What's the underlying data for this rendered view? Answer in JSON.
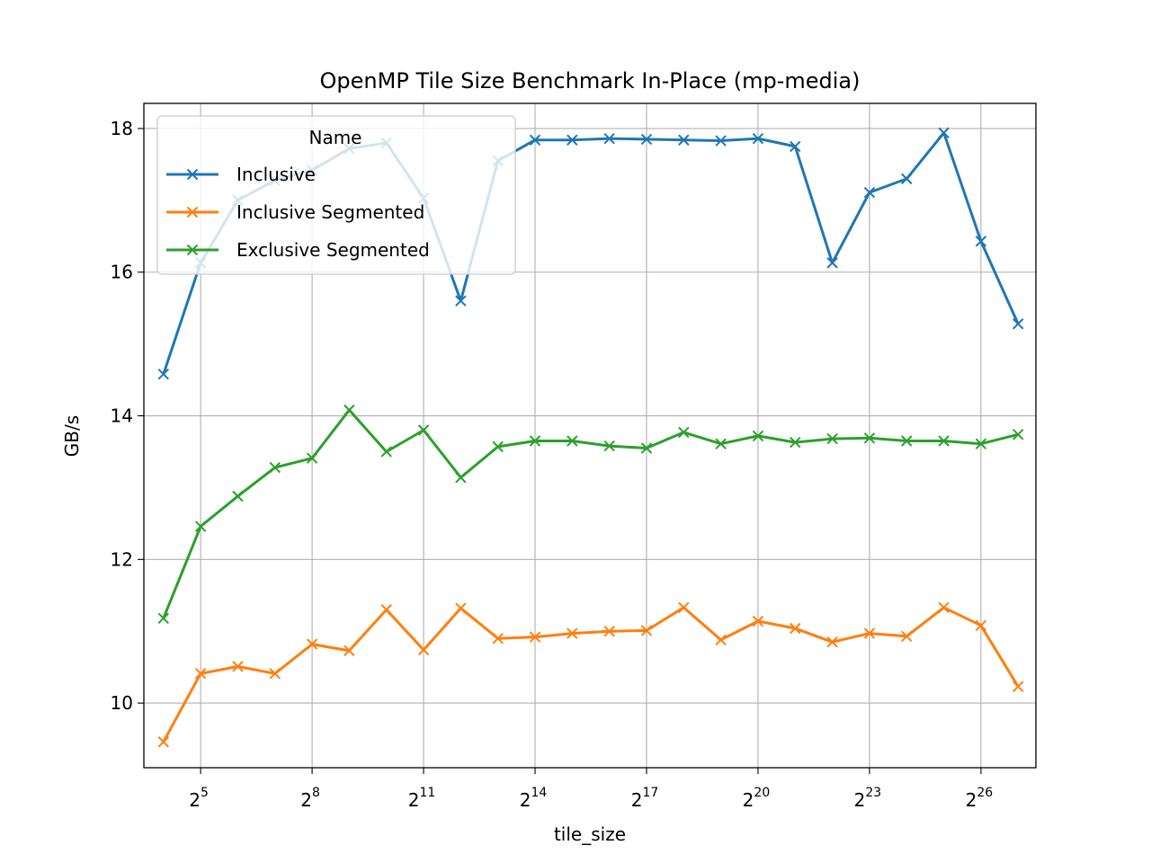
{
  "chart_data": {
    "type": "line",
    "title": "OpenMP Tile Size Benchmark In-Place (mp-media)",
    "xlabel": "tile_size",
    "ylabel": "GB/s",
    "x_scale": "log2",
    "x": [
      16,
      32,
      64,
      128,
      256,
      512,
      1024,
      2048,
      4096,
      8192,
      16384,
      32768,
      65536,
      131072,
      262144,
      524288,
      1048576,
      2097152,
      4194304,
      8388608,
      16777216,
      33554432,
      67108864,
      134217728
    ],
    "xlim": [
      11.1,
      187000000
    ],
    "ylim": [
      9.1,
      18.35
    ],
    "x_ticks": [
      {
        "value": 32,
        "base": "2",
        "exp": "5"
      },
      {
        "value": 256,
        "base": "2",
        "exp": "8"
      },
      {
        "value": 2048,
        "base": "2",
        "exp": "11"
      },
      {
        "value": 16384,
        "base": "2",
        "exp": "14"
      },
      {
        "value": 131072,
        "base": "2",
        "exp": "17"
      },
      {
        "value": 1048576,
        "base": "2",
        "exp": "20"
      },
      {
        "value": 8388608,
        "base": "2",
        "exp": "23"
      },
      {
        "value": 67108864,
        "base": "2",
        "exp": "26"
      }
    ],
    "y_ticks": [
      {
        "value": 10,
        "label": "10"
      },
      {
        "value": 12,
        "label": "12"
      },
      {
        "value": 14,
        "label": "14"
      },
      {
        "value": 16,
        "label": "16"
      },
      {
        "value": 18,
        "label": "18"
      }
    ],
    "grid": true,
    "legend": {
      "title": "Name",
      "placement": "upper-left"
    },
    "marker": "x",
    "series": [
      {
        "name": "Inclusive",
        "color": "#1f77b4",
        "values": [
          14.58,
          16.13,
          17.0,
          17.28,
          17.42,
          17.72,
          17.8,
          17.03,
          15.6,
          17.55,
          17.84,
          17.84,
          17.86,
          17.85,
          17.84,
          17.83,
          17.86,
          17.75,
          16.13,
          17.11,
          17.3,
          17.94,
          16.43,
          15.28
        ]
      },
      {
        "name": "Inclusive Segmented",
        "color": "#ff7f0e",
        "values": [
          9.46,
          10.41,
          10.51,
          10.41,
          10.82,
          10.73,
          11.3,
          10.74,
          11.32,
          10.9,
          10.92,
          10.97,
          11.0,
          11.01,
          11.33,
          10.88,
          11.14,
          11.04,
          10.85,
          10.97,
          10.93,
          11.33,
          11.08,
          10.23
        ]
      },
      {
        "name": "Exclusive Segmented",
        "color": "#2ca02c",
        "values": [
          11.18,
          12.46,
          12.88,
          13.28,
          13.41,
          14.08,
          13.5,
          13.8,
          13.14,
          13.57,
          13.65,
          13.65,
          13.58,
          13.55,
          13.77,
          13.61,
          13.72,
          13.63,
          13.68,
          13.69,
          13.65,
          13.65,
          13.61,
          13.74
        ]
      }
    ]
  }
}
